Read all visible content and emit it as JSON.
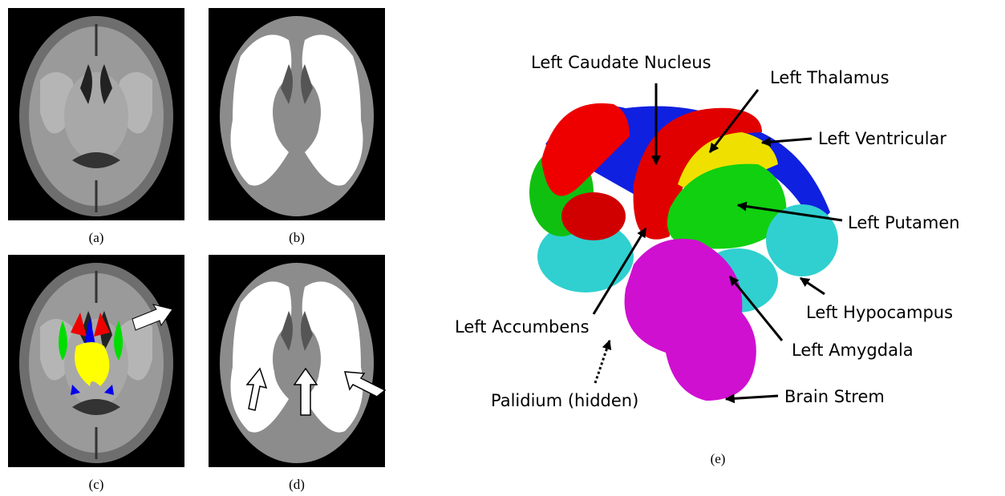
{
  "captions": [
    "(a)",
    "(b)",
    "(c)",
    "(d)",
    "(e)"
  ],
  "labels": [
    "Left Caudate Nucleus",
    "Left Thalamus",
    "Left Ventricular",
    "Left Putamen",
    "Left Hypocampus",
    "Left Amygdala",
    "Brain Strem",
    "Left Accumbens",
    "Palidium (hidden)"
  ]
}
